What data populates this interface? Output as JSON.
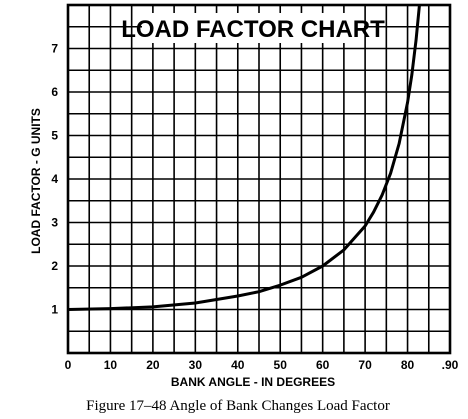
{
  "chart_data": {
    "type": "line",
    "title": "LOAD FACTOR CHART",
    "xlabel": "BANK ANGLE - IN DEGREES",
    "ylabel": "LOAD FACTOR - G UNITS",
    "xlim": [
      0,
      90
    ],
    "ylim": [
      0,
      8
    ],
    "x_ticks": [
      "0",
      "10",
      "20",
      "30",
      "40",
      "50",
      "60",
      "70",
      "80",
      ".90"
    ],
    "y_ticks": [
      "1",
      "2",
      "3",
      "4",
      "5",
      "6",
      "7"
    ],
    "grid": true,
    "legend": "none",
    "series": [
      {
        "x": [
          0,
          10,
          20,
          30,
          40,
          45,
          50,
          55,
          60,
          65,
          70,
          72,
          74,
          76,
          78,
          80,
          81,
          82,
          83,
          83.5
        ],
        "y": [
          1.0,
          1.02,
          1.06,
          1.15,
          1.31,
          1.41,
          1.56,
          1.74,
          2.0,
          2.37,
          2.92,
          3.24,
          3.63,
          4.13,
          4.81,
          5.76,
          6.39,
          7.19,
          8.2,
          8.8
        ]
      }
    ]
  },
  "caption": "Figure 17–48   Angle of Bank Changes Load Factor"
}
